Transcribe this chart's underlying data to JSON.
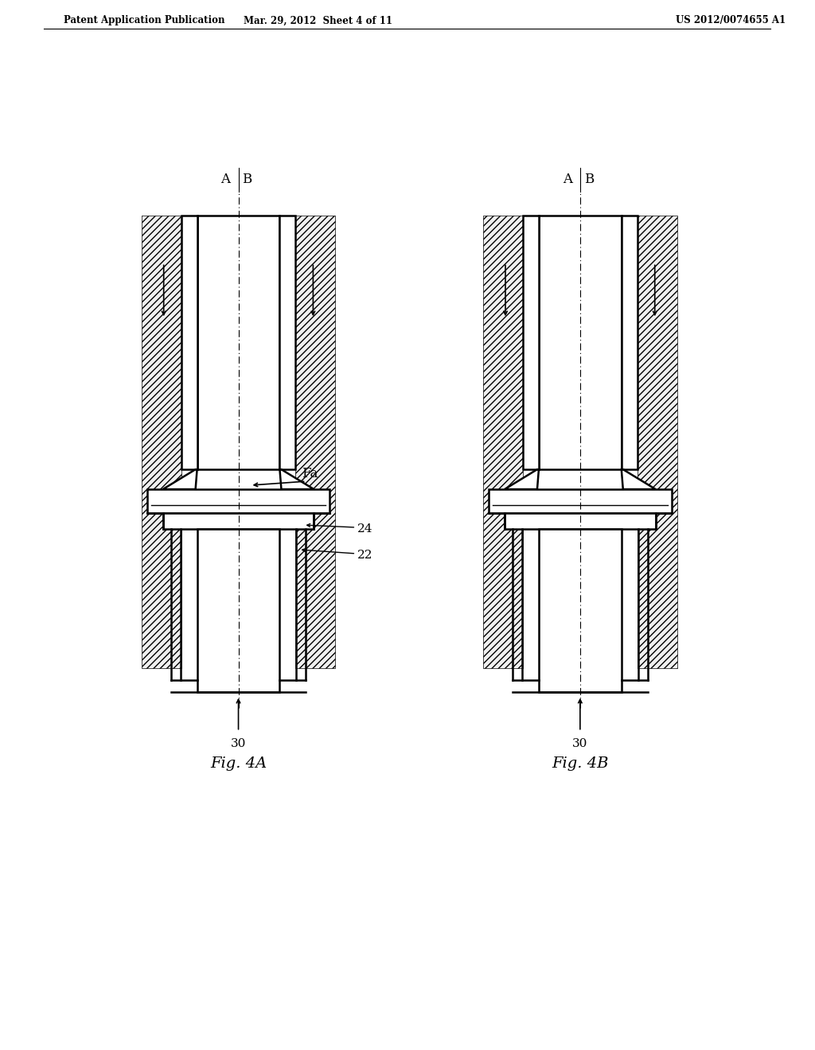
{
  "bg_color": "#ffffff",
  "line_color": "#000000",
  "header_text_left": "Patent Application Publication",
  "header_text_mid": "Mar. 29, 2012  Sheet 4 of 11",
  "header_text_right": "US 2012/0074655 A1",
  "fig4a_label": "Fig. 4A",
  "fig4b_label": "Fig. 4B",
  "label_A": "A",
  "label_B": "B",
  "label_Fa": "Fa",
  "label_24": "24",
  "label_22": "22",
  "label_30a": "30",
  "label_30b": "30",
  "fig_width": 10.24,
  "fig_height": 13.2,
  "dpi": 100
}
